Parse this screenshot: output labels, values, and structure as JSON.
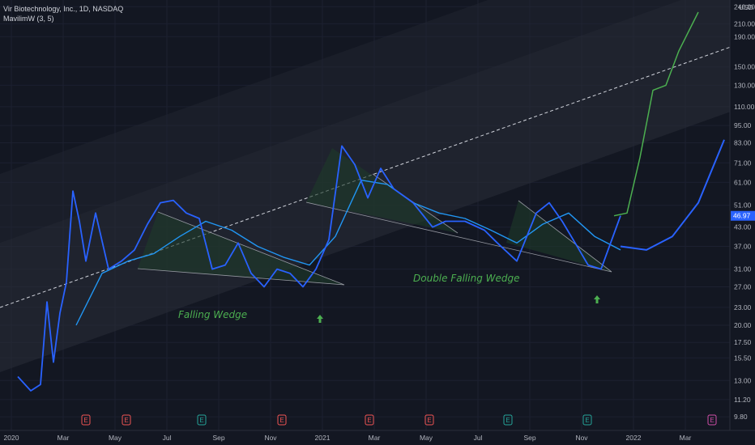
{
  "header": {
    "symbol_line": "Vir Biotechnology, Inc., 1D, NASDAQ",
    "indicator_line": "MavilimW (3, 5)"
  },
  "colors": {
    "background": "#131722",
    "price": "#2962ff",
    "projection": "#4caf50",
    "curve": "#2962ff",
    "mavilim_up": "#2196f3",
    "mavilim_down": "#f05454",
    "channel_fill": "#2a2e39",
    "wedge_fill": "#1e3b2a",
    "price_tag": "#2962ff"
  },
  "chart_data": {
    "type": "line",
    "title": "Vir Biotechnology, Inc., 1D, NASDAQ",
    "scale": "log",
    "currency": "USD",
    "ylim": [
      9.5,
      245
    ],
    "y_ticks": [
      "240.00",
      "210.00",
      "190.00",
      "150.00",
      "130.00",
      "110.00",
      "95.00",
      "83.00",
      "71.00",
      "61.00",
      "51.00",
      "43.00",
      "37.00",
      "31.00",
      "27.00",
      "23.00",
      "20.00",
      "17.50",
      "15.50",
      "13.00",
      "11.20",
      "9.80"
    ],
    "x_ticks": [
      "2020",
      "Mar",
      "May",
      "Jul",
      "Sep",
      "Nov",
      "2021",
      "Mar",
      "May",
      "Jul",
      "Sep",
      "Nov",
      "2022",
      "Mar"
    ],
    "last_price": "46.97",
    "series": [
      {
        "name": "Price",
        "x": [
          "2020-01",
          "2020-01",
          "2020-02",
          "2020-02",
          "2020-02",
          "2020-02",
          "2020-03",
          "2020-03",
          "2020-03",
          "2020-03",
          "2020-04",
          "2020-04",
          "2020-05",
          "2020-05",
          "2020-06",
          "2020-06",
          "2020-07",
          "2020-07",
          "2020-08",
          "2020-08",
          "2020-09",
          "2020-09",
          "2020-10",
          "2020-10",
          "2020-11",
          "2020-11",
          "2020-12",
          "2020-12",
          "2021-01",
          "2021-01",
          "2021-02",
          "2021-02",
          "2021-03",
          "2021-03",
          "2021-04",
          "2021-05",
          "2021-05",
          "2021-06",
          "2021-07",
          "2021-07",
          "2021-08",
          "2021-09",
          "2021-09",
          "2021-10",
          "2021-10",
          "2021-11",
          "2021-11",
          "2021-12"
        ],
        "values": [
          13.4,
          12.0,
          12.6,
          24,
          15,
          22,
          28,
          57,
          45,
          33,
          48,
          31,
          33,
          36,
          44,
          52,
          53,
          48,
          46,
          31,
          32,
          38,
          30,
          27,
          31,
          30,
          27,
          31,
          39,
          81,
          70,
          54,
          68,
          58,
          52,
          43,
          45,
          45,
          42,
          38,
          33,
          48,
          52,
          45,
          38,
          32,
          31,
          46.97
        ]
      },
      {
        "name": "Projection",
        "x": [
          "2021-12",
          "2021-12",
          "2022-01",
          "2022-01",
          "2022-02",
          "2022-02",
          "2022-03"
        ],
        "values": [
          46.97,
          48,
          74,
          125,
          130,
          170,
          230
        ]
      },
      {
        "name": "MavilimW (3, 5)",
        "x": [
          "2020-03",
          "2020-04",
          "2020-05",
          "2020-06",
          "2020-07",
          "2020-08",
          "2020-09",
          "2020-10",
          "2020-11",
          "2020-12",
          "2021-01",
          "2021-02",
          "2021-03",
          "2021-04",
          "2021-05",
          "2021-06",
          "2021-07",
          "2021-08",
          "2021-09",
          "2021-10",
          "2021-11",
          "2021-12"
        ],
        "values": [
          20,
          30,
          33,
          35,
          40,
          45,
          42,
          37,
          34,
          32,
          40,
          62,
          60,
          52,
          48,
          46,
          42,
          38,
          44,
          48,
          40,
          36
        ]
      },
      {
        "name": "Projected curve",
        "x": [
          "2021-12",
          "2022-01",
          "2022-02",
          "2022-03",
          "2022-04"
        ],
        "values": [
          37,
          36,
          40,
          52,
          85
        ]
      }
    ],
    "annotations": [
      "Falling Wedge",
      "Double Falling Wedge"
    ],
    "earnings_markers": [
      "E",
      "E",
      "E",
      "E",
      "E",
      "E",
      "E",
      "E",
      "E",
      "E"
    ],
    "grid": true,
    "legend": "top-left"
  }
}
